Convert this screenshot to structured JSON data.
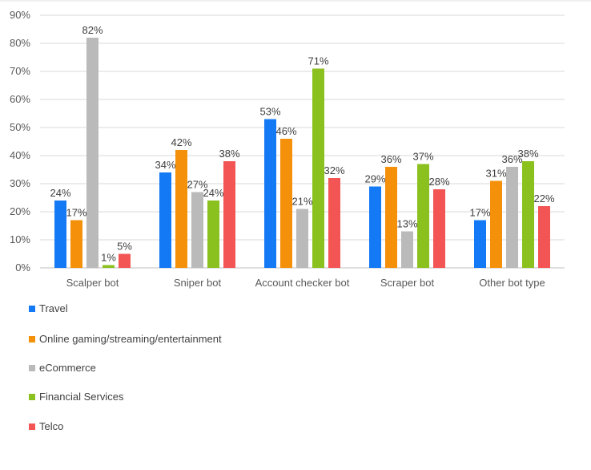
{
  "chart_data": {
    "type": "bar",
    "title": "",
    "xlabel": "",
    "ylabel": "",
    "categories": [
      "Scalper bot",
      "Sniper bot",
      "Account checker bot",
      "Scraper bot",
      "Other bot type"
    ],
    "series": [
      {
        "name": "Travel",
        "color": "#1479f5",
        "values": [
          24,
          34,
          53,
          29,
          17
        ]
      },
      {
        "name": "Online gaming/streaming/entertainment",
        "color": "#f5900b",
        "values": [
          17,
          42,
          46,
          36,
          31
        ]
      },
      {
        "name": "eCommerce",
        "color": "#bababa",
        "values": [
          82,
          27,
          21,
          13,
          36
        ]
      },
      {
        "name": "Financial Services",
        "color": "#8bc11e",
        "values": [
          1,
          24,
          71,
          37,
          38
        ]
      },
      {
        "name": "Telco",
        "color": "#f35454",
        "values": [
          5,
          38,
          32,
          28,
          22
        ]
      }
    ],
    "ylim": [
      0,
      90
    ],
    "yticks": [
      "0%",
      "10%",
      "20%",
      "30%",
      "40%",
      "50%",
      "60%",
      "70%",
      "80%",
      "90%"
    ],
    "value_suffix": "%",
    "grid": true,
    "legend_position": "bottom-left"
  }
}
